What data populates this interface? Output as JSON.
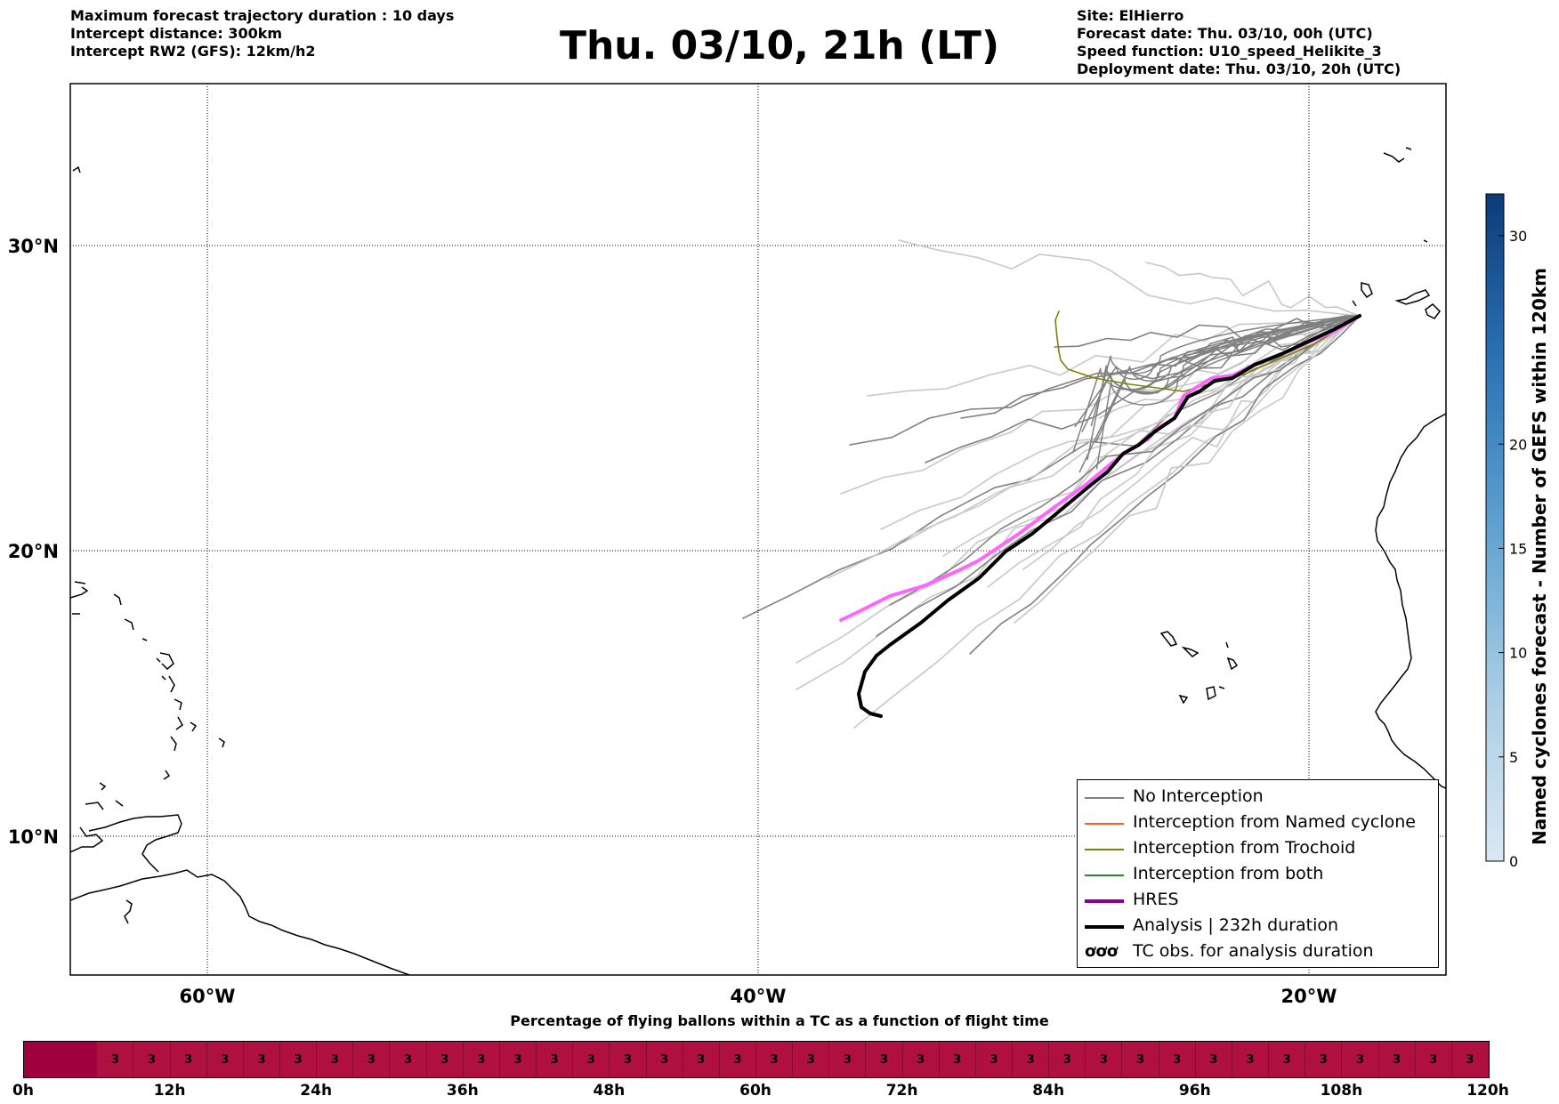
{
  "header": {
    "left_lines": [
      "Maximum forecast trajectory duration : 10 days",
      "Intercept distance: 300km",
      "Intercept RW2 (GFS):  12km/h2"
    ],
    "title": "Thu. 03/10, 21h (LT)",
    "right_lines": [
      "Site: ElHierro",
      "Forecast date: Thu. 03/10, 00h (UTC)",
      "Speed function: U10_speed_Helikite_3",
      "Deployment date: Thu. 03/10, 20h (UTC)"
    ]
  },
  "map": {
    "lon_range": [
      -65,
      15
    ],
    "lat_range": [
      5,
      35
    ],
    "lat_labels": [
      "30°N",
      "20°N",
      "10°N"
    ],
    "lat_values": [
      30,
      20,
      10
    ],
    "lon_labels": [
      "60°W",
      "40°W",
      "20°W"
    ],
    "lon_values": [
      -60,
      -40,
      -20
    ],
    "colors": {
      "no_interception": "#808080",
      "ensemble_light": "#c8c8c8",
      "named_cyclone": "#ff5a1f",
      "trochoid": "#808000",
      "both": "#228b22",
      "hres": "#ff66ff",
      "hres_legend": "#8b008b",
      "analysis": "#000000"
    }
  },
  "legend": {
    "items": [
      {
        "label": "No Interception",
        "color": "#808080",
        "width": 1.5
      },
      {
        "label": "Interception from Named cyclone",
        "color": "#ff5a1f",
        "width": 1.5
      },
      {
        "label": "Interception from Trochoid",
        "color": "#808000",
        "width": 1.5
      },
      {
        "label": "Interception from both",
        "color": "#228b22",
        "width": 1.5
      },
      {
        "label": "HRES",
        "color": "#8b008b",
        "width": 4
      },
      {
        "label": "Analysis | 232h duration",
        "color": "#000000",
        "width": 4
      },
      {
        "label": "TC obs. for analysis duration",
        "color": "#000000",
        "width": 0
      }
    ]
  },
  "colorbar": {
    "label": "Named cyclones forecast - Number of GEFS within 120km",
    "ticks": [
      "0",
      "5",
      "10",
      "15",
      "20",
      "30"
    ],
    "tick_values": [
      0,
      5,
      10,
      15,
      20,
      30
    ],
    "min": 0,
    "max": 32
  },
  "timeline": {
    "title": "Percentage of flying ballons within a TC as a function of flight time",
    "tick_labels": [
      "0h",
      "12h",
      "24h",
      "36h",
      "48h",
      "60h",
      "72h",
      "84h",
      "96h",
      "108h",
      "120h"
    ],
    "cells": [
      "",
      "",
      "3",
      "3",
      "3",
      "3",
      "3",
      "3",
      "3",
      "3",
      "3",
      "3",
      "3",
      "3",
      "3",
      "3",
      "3",
      "3",
      "3",
      "3",
      "3",
      "3",
      "3",
      "3",
      "3",
      "3",
      "3",
      "3",
      "3",
      "3",
      "3",
      "3",
      "3",
      "3",
      "3",
      "3",
      "3",
      "3",
      "3",
      "3"
    ],
    "first_color": "#a0003e",
    "cell_color": "#b0103f"
  }
}
